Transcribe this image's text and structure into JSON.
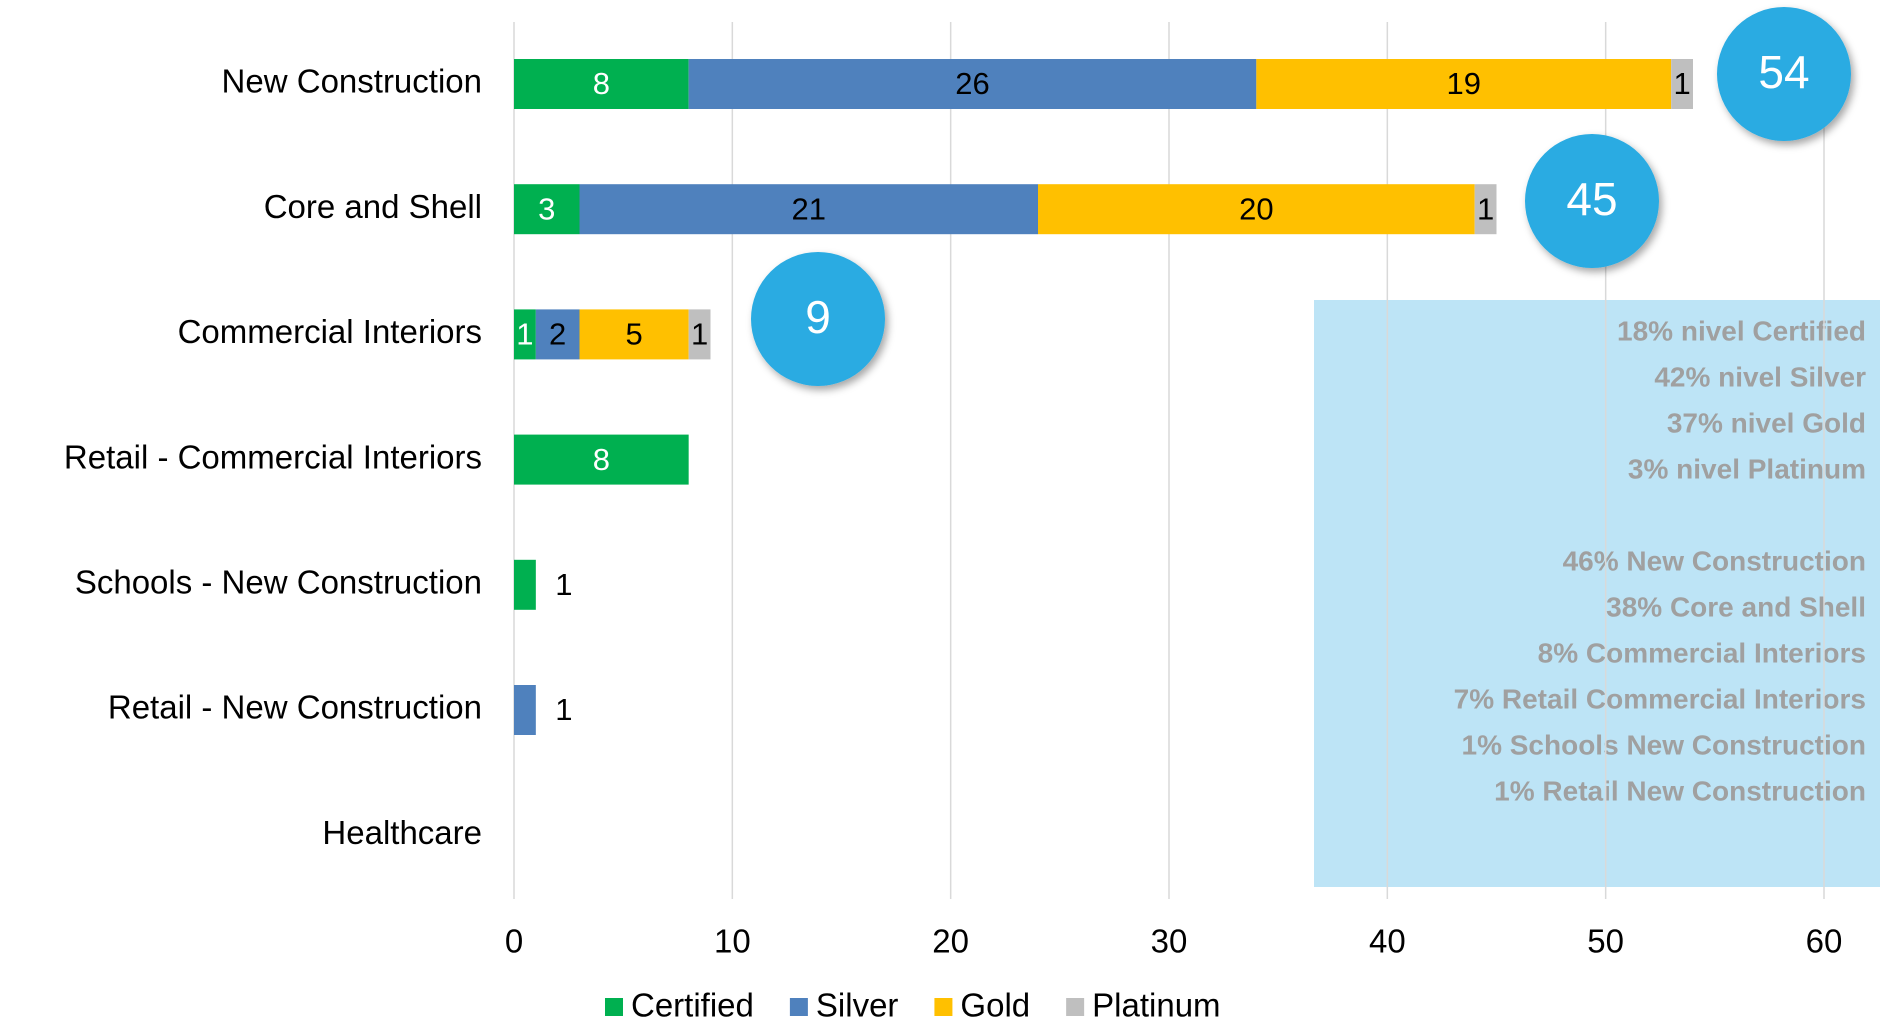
{
  "chart_data": {
    "type": "stacked-barh",
    "categories": [
      "New Construction",
      "Core and Shell",
      "Commercial Interiors",
      "Retail - Commercial Interiors",
      "Schools - New Construction",
      "Retail - New Construction",
      "Healthcare"
    ],
    "series": [
      {
        "name": "Certified",
        "color": "#00b050",
        "values": [
          8,
          3,
          1,
          8,
          1,
          0,
          0
        ]
      },
      {
        "name": "Silver",
        "color": "#4f81bd",
        "values": [
          26,
          21,
          2,
          0,
          0,
          1,
          0
        ]
      },
      {
        "name": "Gold",
        "color": "#ffc000",
        "values": [
          19,
          20,
          5,
          0,
          0,
          0,
          0
        ]
      },
      {
        "name": "Platinum",
        "color": "#bfbfbf",
        "values": [
          1,
          1,
          1,
          0,
          0,
          0,
          0
        ]
      }
    ],
    "totals": [
      54,
      45,
      9
    ],
    "xlim": [
      0,
      60
    ],
    "xticks": [
      0,
      10,
      20,
      30,
      40,
      50,
      60
    ],
    "grid": true,
    "legend": "bottom",
    "summary_levels": [
      "18% nivel Certified",
      "42% nivel Silver",
      "37% nivel Gold",
      "3% nivel Platinum"
    ],
    "summary_types": [
      "46% New Construction",
      "38% Core and Shell",
      "8% Commercial Interiors",
      "7% Retail Commercial Interiors",
      "1% Schools New Construction",
      "1% Retail New Construction"
    ]
  }
}
